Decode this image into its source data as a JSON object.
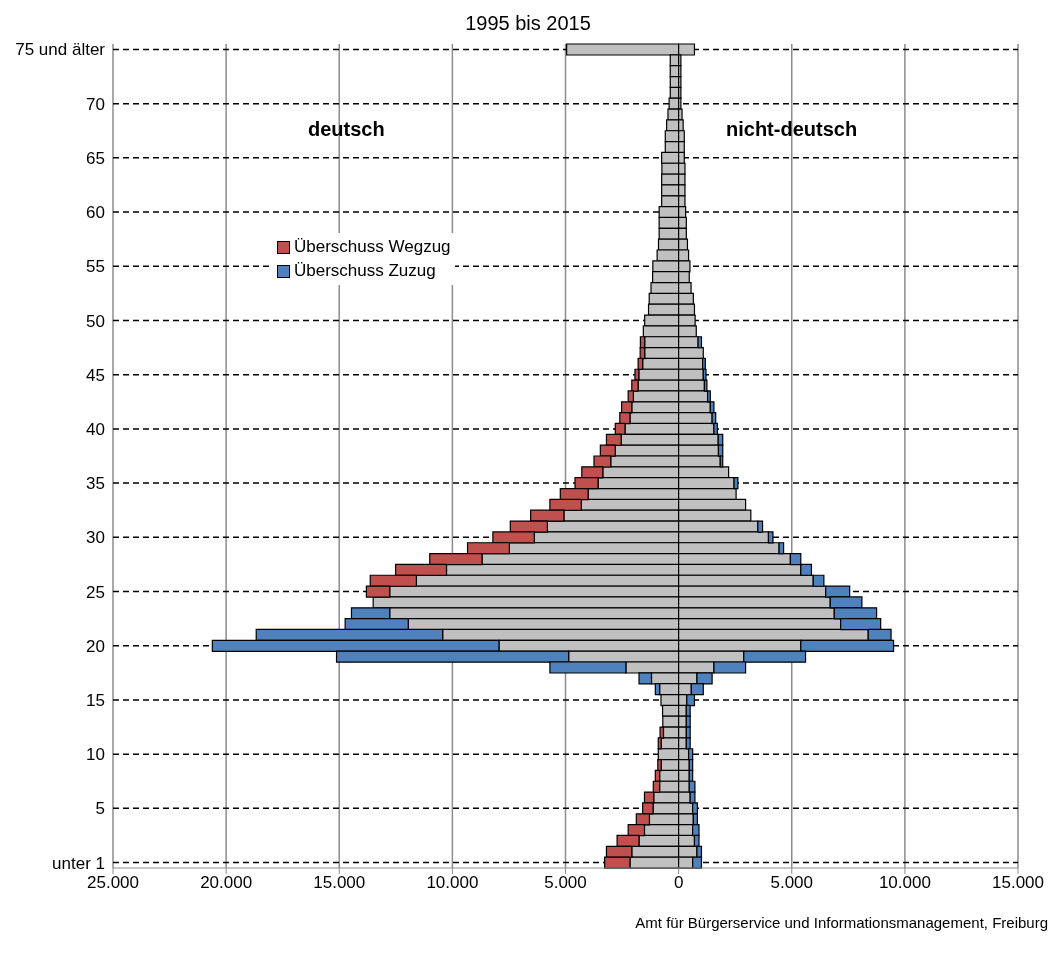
{
  "chart_data": {
    "type": "bar",
    "orientation": "horizontal",
    "stacked": true,
    "title": "1995 bis 2015",
    "categories": [
      "75 und älter",
      null,
      null,
      null,
      null,
      "70",
      null,
      null,
      null,
      null,
      "65",
      null,
      null,
      null,
      null,
      "60",
      null,
      null,
      null,
      null,
      "55",
      null,
      null,
      null,
      null,
      "50",
      null,
      null,
      null,
      null,
      "45",
      null,
      null,
      null,
      null,
      "40",
      null,
      null,
      null,
      null,
      "35",
      null,
      null,
      null,
      null,
      "30",
      null,
      null,
      null,
      null,
      "25",
      null,
      null,
      null,
      null,
      "20",
      null,
      null,
      null,
      null,
      "15",
      null,
      null,
      null,
      null,
      "10",
      null,
      null,
      null,
      null,
      "5",
      null,
      null,
      null,
      null,
      "unter 1"
    ],
    "series": [
      {
        "color": "#c0c0c0",
        "values": [
          -4950,
          -370,
          -370,
          -370,
          -370,
          -420,
          -470,
          -530,
          -590,
          -590,
          -750,
          -740,
          -750,
          -750,
          -750,
          -860,
          -860,
          -860,
          -890,
          -950,
          -1140,
          -1150,
          -1220,
          -1300,
          -1330,
          -1500,
          -1560,
          -1500,
          -1500,
          -1590,
          -1760,
          -1790,
          -2000,
          -2070,
          -2150,
          -2370,
          -2540,
          -2800,
          -3000,
          -3350,
          -3560,
          -4000,
          -4300,
          -5070,
          -5800,
          -6380,
          -7480,
          -8690,
          -10260,
          -11590,
          -12770,
          -13500,
          -12770,
          -11950,
          -10430,
          -7940,
          -4860,
          -2330,
          -1200,
          -840,
          -780,
          -710,
          -700,
          -670,
          -770,
          -900,
          -770,
          -840,
          -840,
          -1100,
          -1130,
          -1290,
          -1510,
          -1750,
          -2070,
          -2150
        ]
      },
      {
        "name": "Überschuss Wegzug",
        "color": "#c0504d",
        "values": [
          null,
          null,
          null,
          null,
          null,
          null,
          null,
          null,
          null,
          null,
          null,
          null,
          null,
          null,
          null,
          null,
          null,
          null,
          null,
          null,
          null,
          null,
          null,
          null,
          null,
          null,
          null,
          -190,
          -200,
          -200,
          -170,
          -280,
          -230,
          -450,
          -450,
          -430,
          -650,
          -660,
          -740,
          -930,
          -1020,
          -1230,
          -1390,
          -1470,
          -1640,
          -1830,
          -1850,
          -2310,
          -2250,
          -2040,
          -1030,
          null,
          null,
          null,
          null,
          null,
          null,
          null,
          null,
          null,
          null,
          null,
          null,
          -150,
          -130,
          null,
          -150,
          -190,
          -280,
          -410,
          -460,
          -580,
          -720,
          -970,
          -1120,
          -1120
        ]
      },
      {
        "name": "Überschuss Zuzug",
        "color": "#4f81bd",
        "values": [
          null,
          null,
          null,
          null,
          null,
          null,
          null,
          null,
          null,
          null,
          null,
          null,
          null,
          null,
          null,
          null,
          null,
          null,
          null,
          null,
          null,
          null,
          null,
          null,
          null,
          null,
          null,
          null,
          null,
          null,
          null,
          null,
          null,
          null,
          null,
          null,
          null,
          null,
          null,
          null,
          null,
          null,
          null,
          null,
          null,
          null,
          null,
          null,
          null,
          null,
          null,
          null,
          -1690,
          -2790,
          -8240,
          -12670,
          -10260,
          -3360,
          -550,
          -190,
          null,
          null,
          null,
          null,
          null,
          null,
          null,
          null,
          null,
          null,
          null,
          null,
          null,
          null,
          null,
          null
        ]
      },
      {
        "color": "#c0c0c0",
        "values": [
          700,
          100,
          100,
          100,
          100,
          100,
          150,
          200,
          250,
          250,
          250,
          280,
          280,
          280,
          280,
          310,
          340,
          340,
          390,
          440,
          500,
          470,
          550,
          650,
          700,
          730,
          780,
          860,
          1090,
          1060,
          1090,
          1140,
          1280,
          1400,
          1480,
          1560,
          1750,
          1760,
          1840,
          2210,
          2450,
          2540,
          2960,
          3190,
          3500,
          3970,
          4440,
          4940,
          5400,
          5950,
          6500,
          6700,
          6880,
          7160,
          8380,
          5400,
          2880,
          1560,
          810,
          560,
          360,
          340,
          340,
          340,
          340,
          440,
          470,
          470,
          470,
          510,
          620,
          650,
          620,
          700,
          810,
          620
        ]
      },
      {
        "color": "#4f81bd",
        "values": [
          null,
          null,
          null,
          null,
          null,
          null,
          null,
          null,
          null,
          null,
          null,
          null,
          null,
          null,
          null,
          null,
          null,
          null,
          null,
          null,
          null,
          null,
          null,
          null,
          null,
          null,
          null,
          150,
          null,
          120,
          120,
          110,
          120,
          160,
          160,
          150,
          200,
          190,
          110,
          null,
          170,
          null,
          null,
          null,
          210,
          200,
          200,
          460,
          470,
          470,
          1060,
          1400,
          1870,
          1770,
          1010,
          4100,
          2730,
          1400,
          670,
          530,
          340,
          170,
          170,
          170,
          170,
          180,
          150,
          150,
          250,
          210,
          210,
          180,
          280,
          200,
          200,
          390
        ]
      }
    ],
    "xlim": [
      -25000,
      15000
    ],
    "xticks": [
      {
        "value": -25000,
        "label": "25.000"
      },
      {
        "value": -20000,
        "label": "20.000"
      },
      {
        "value": -15000,
        "label": "15.000"
      },
      {
        "value": -10000,
        "label": "10.000"
      },
      {
        "value": -5000,
        "label": "5.000"
      },
      0,
      {
        "value": 5000,
        "label": "5.000"
      },
      {
        "value": 10000,
        "label": "10.000"
      },
      {
        "value": 15000,
        "label": "15.000"
      }
    ],
    "grid": true,
    "legend": "top left",
    "annotations": [
      "deutsch",
      "nicht-deutsch",
      "Amt für Bürgerservice und Informationsmanagement, Freiburg"
    ]
  }
}
